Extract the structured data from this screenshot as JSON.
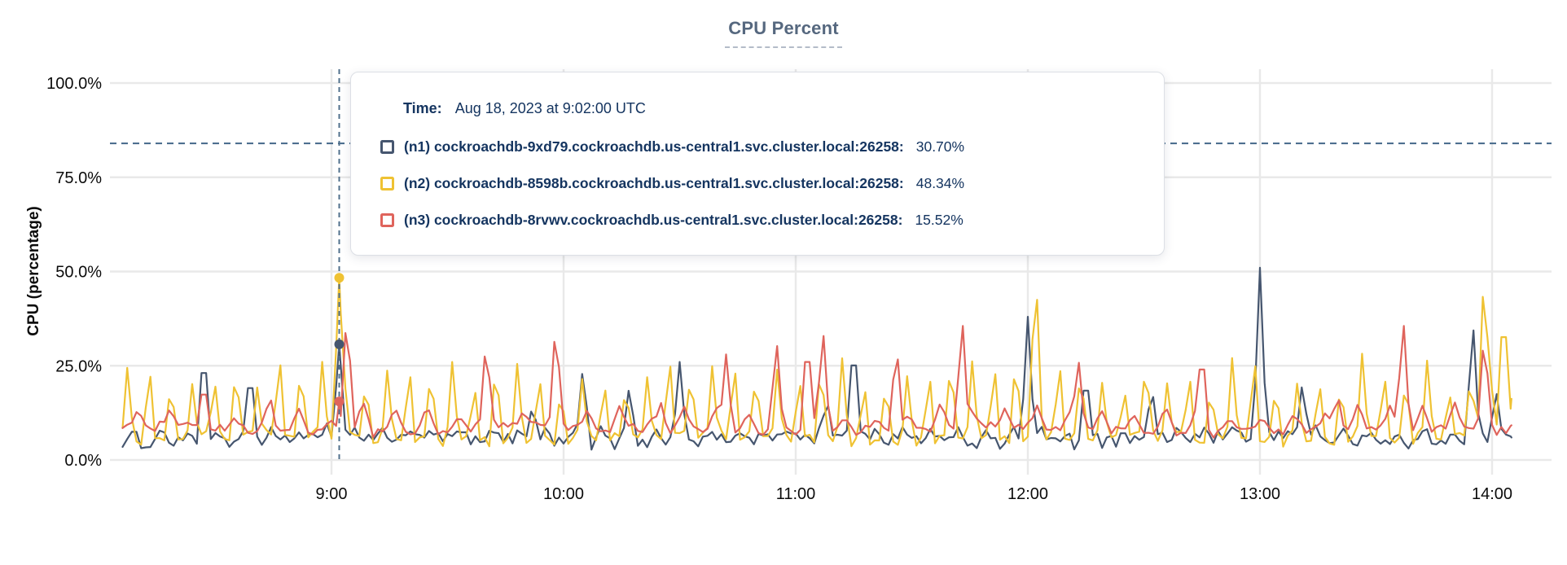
{
  "panel": {
    "background": "#ffffff"
  },
  "tooltip": {
    "time_label": "Time:",
    "time_value": "Aug 18, 2023 at 9:02:00 UTC"
  },
  "chart_data": {
    "type": "line",
    "title": "CPU Percent",
    "ylabel": "CPU (percentage)",
    "xlabel": "",
    "ylim": [
      0,
      100
    ],
    "grid": true,
    "legend_position": "tooltip-overlay",
    "y_ticks": [
      {
        "value": 100,
        "label": "100.0%"
      },
      {
        "value": 75,
        "label": "75.0%"
      },
      {
        "value": 50,
        "label": "50.0%"
      },
      {
        "value": 25,
        "label": "25.0%"
      },
      {
        "value": 0,
        "label": "0.0%"
      }
    ],
    "x_ticks": [
      {
        "minute": 540,
        "label": "9:00"
      },
      {
        "minute": 600,
        "label": "10:00"
      },
      {
        "minute": 660,
        "label": "11:00"
      },
      {
        "minute": 720,
        "label": "12:00"
      },
      {
        "minute": 780,
        "label": "13:00"
      },
      {
        "minute": 840,
        "label": "14:00"
      }
    ],
    "x_range_minutes": [
      486,
      845
    ],
    "sample_step_minutes": 1.2,
    "threshold_percent": 84,
    "hover": {
      "minute": 542,
      "time_text": "Aug 18, 2023 at 9:02:00 UTC",
      "values": {
        "n1": 30.7,
        "n2": 48.34,
        "n3": 15.52
      }
    },
    "series": [
      {
        "id": "n1",
        "legend": "(n1) cockroachdb-9xd79.cockroachdb.us-central1.svc.cluster.local:26258:",
        "color": "#46566f",
        "baseline": 5.2,
        "noise": 1.7,
        "periodic": {
          "phase": 489.0,
          "period": 7.1,
          "width": 1.6,
          "min": 7,
          "max": 10
        },
        "spikes": [
          [
            507,
            32
          ],
          [
            519,
            26
          ],
          [
            542,
            30.7
          ],
          [
            592,
            15
          ],
          [
            605,
            25
          ],
          [
            617,
            20
          ],
          [
            630,
            26
          ],
          [
            668,
            17
          ],
          [
            675,
            35
          ],
          [
            720,
            38
          ],
          [
            735,
            25
          ],
          [
            752,
            20
          ],
          [
            780,
            51
          ],
          [
            791,
            21
          ],
          [
            835,
            38
          ],
          [
            841,
            19
          ]
        ]
      },
      {
        "id": "n2",
        "legend": "(n2) cockroachdb-8598b.cockroachdb.us-central1.svc.cluster.local:26258:",
        "color": "#efc233",
        "baseline": 5.8,
        "noise": 1.5,
        "periodic": {
          "phase": 487.3,
          "period": 5.6,
          "width": 1.5,
          "min": 19,
          "max": 30
        },
        "spikes": [
          [
            542,
            48.34
          ],
          [
            722,
            53
          ],
          [
            838,
            54
          ],
          [
            843,
            46
          ]
        ]
      },
      {
        "id": "n3",
        "legend": "(n3) cockroachdb-8rvwv.cockroachdb.us-central1.svc.cluster.local:26258:",
        "color": "#df645c",
        "baseline": 8.0,
        "noise": 1.3,
        "periodic": {
          "phase": 490.0,
          "period": 8.3,
          "width": 2.3,
          "min": 10,
          "max": 16
        },
        "spikes": [
          [
            507,
            22
          ],
          [
            524,
            18
          ],
          [
            544,
            41
          ],
          [
            580,
            33
          ],
          [
            598,
            38
          ],
          [
            625,
            16
          ],
          [
            642,
            28
          ],
          [
            655,
            33
          ],
          [
            663,
            35
          ],
          [
            667,
            36
          ],
          [
            686,
            32
          ],
          [
            703,
            39
          ],
          [
            733,
            28
          ],
          [
            765,
            32
          ],
          [
            800,
            18
          ],
          [
            817,
            39
          ],
          [
            838,
            35
          ]
        ]
      }
    ]
  }
}
